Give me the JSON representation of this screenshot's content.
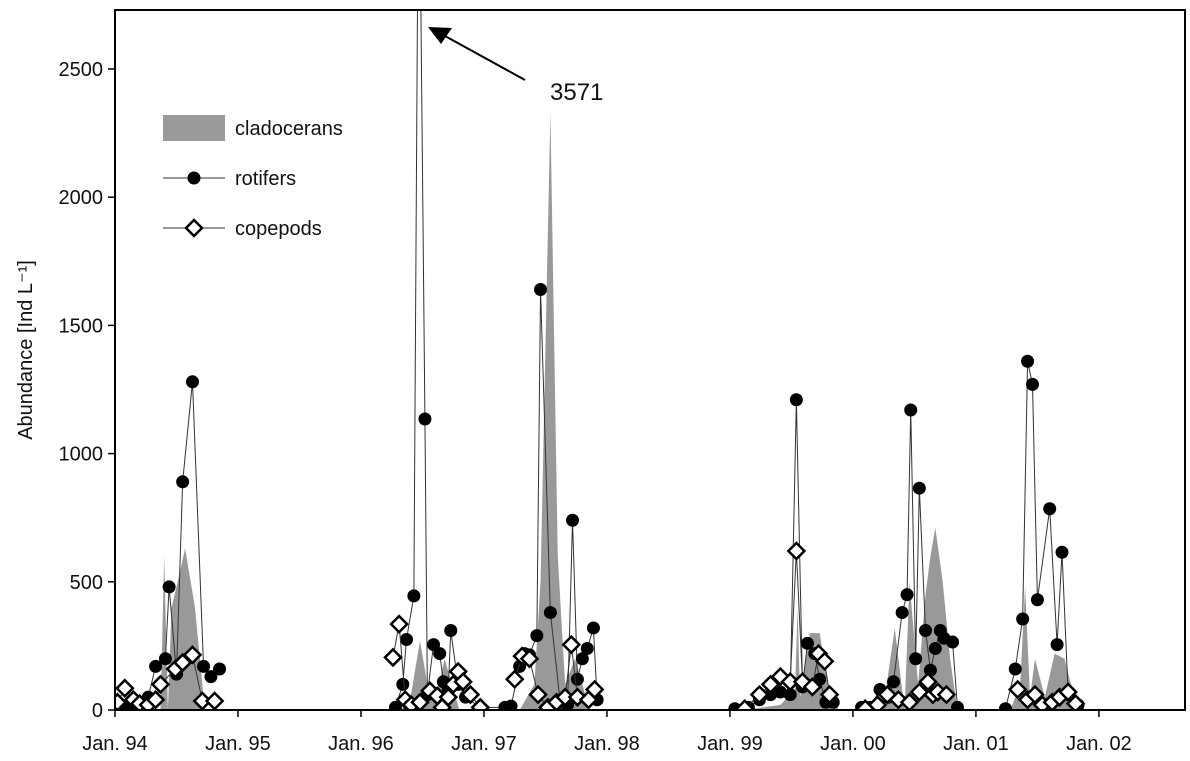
{
  "chart_data": {
    "type": "line",
    "y_label": "Abundance [Ind L⁻¹]",
    "annotation": "3571",
    "xlim": [
      1994,
      2002.7
    ],
    "xticks": [
      {
        "value": 1994,
        "label": "Jan. 94"
      },
      {
        "value": 1995,
        "label": "Jan. 95"
      },
      {
        "value": 1996,
        "label": "Jan. 96"
      },
      {
        "value": 1997,
        "label": "Jan. 97"
      },
      {
        "value": 1998,
        "label": "Jan. 98"
      },
      {
        "value": 1999,
        "label": "Jan. 99"
      },
      {
        "value": 2000,
        "label": "Jan. 00"
      },
      {
        "value": 2001,
        "label": "Jan. 01"
      },
      {
        "value": 2002,
        "label": "Jan. 02"
      }
    ],
    "ylim": [
      0,
      2730
    ],
    "yticks": [
      0,
      500,
      1000,
      1500,
      2000,
      2500
    ],
    "series": [
      {
        "name": "cladocerans",
        "kind": "area",
        "color": "#999999",
        "x": [
          1994.0,
          1994.37,
          1994.4,
          1994.43,
          1994.46,
          1994.51,
          1994.57,
          1994.65,
          1994.73,
          null,
          1996.32,
          1996.4,
          1996.48,
          1996.54,
          1996.61,
          1996.68,
          1996.74,
          1996.8,
          null,
          1997.29,
          1997.41,
          1997.46,
          1997.54,
          1997.6,
          1997.66,
          1997.74,
          1997.86,
          null,
          1999.12,
          1999.41,
          1999.53,
          1999.55,
          1999.57,
          1999.65,
          1999.73,
          1999.81,
          1999.89,
          null,
          2000.14,
          2000.26,
          2000.34,
          2000.42,
          2000.46,
          2000.53,
          2000.59,
          2000.63,
          2000.67,
          2000.73,
          2000.79,
          2000.85,
          null,
          2001.28,
          2001.36,
          2001.4,
          2001.44,
          2001.48,
          2001.56,
          2001.64,
          2001.72,
          2001.8,
          2001.89
        ],
        "values": [
          0,
          0,
          600,
          0,
          400,
          500,
          630,
          400,
          0,
          null,
          0,
          40,
          270,
          100,
          50,
          200,
          100,
          0,
          null,
          0,
          100,
          500,
          2330,
          600,
          100,
          200,
          0,
          null,
          0,
          20,
          80,
          400,
          50,
          300,
          300,
          50,
          0,
          null,
          0,
          50,
          320,
          0,
          500,
          100,
          450,
          600,
          710,
          500,
          200,
          0,
          null,
          0,
          100,
          480,
          50,
          200,
          50,
          220,
          200,
          50,
          0
        ]
      },
      {
        "name": "rotifers",
        "kind": "circle",
        "color": "#000000",
        "x": [
          1994.04,
          1994.12,
          1994.2,
          1994.27,
          1994.33,
          1994.41,
          1994.44,
          1994.5,
          1994.55,
          1994.63,
          1994.72,
          1994.78,
          1994.85,
          null,
          1996.28,
          1996.34,
          1996.37,
          1996.43,
          1996.47,
          1996.52,
          1996.54,
          1996.59,
          1996.64,
          1996.67,
          1996.71,
          1996.73,
          1996.79,
          1996.85,
          1996.97,
          1997.17,
          1997.22,
          1997.29,
          1997.33,
          1997.37,
          1997.43,
          1997.46,
          1997.54,
          1997.62,
          1997.68,
          1997.72,
          1997.76,
          1997.8,
          1997.84,
          1997.89,
          1997.92,
          null,
          1999.04,
          1999.15,
          1999.24,
          1999.33,
          1999.41,
          1999.49,
          1999.54,
          1999.59,
          1999.63,
          1999.69,
          1999.73,
          1999.78,
          1999.84,
          null,
          2000.07,
          2000.14,
          2000.22,
          2000.29,
          2000.33,
          2000.4,
          2000.44,
          2000.47,
          2000.51,
          2000.54,
          2000.59,
          2000.63,
          2000.67,
          2000.71,
          2000.74,
          2000.81,
          2000.85,
          null,
          2001.24,
          2001.32,
          2001.38,
          2001.42,
          2001.46,
          2001.5,
          2001.6,
          2001.66,
          2001.7,
          2001.75,
          2001.83
        ],
        "values": [
          10,
          20,
          30,
          50,
          170,
          200,
          480,
          140,
          890,
          1280,
          170,
          130,
          160,
          null,
          10,
          100,
          275,
          445,
          3571,
          1135,
          60,
          255,
          220,
          110,
          80,
          310,
          100,
          50,
          10,
          10,
          15,
          170,
          220,
          215,
          290,
          1640,
          380,
          30,
          20,
          740,
          120,
          200,
          240,
          320,
          40,
          null,
          5,
          10,
          40,
          60,
          70,
          60,
          1210,
          90,
          260,
          220,
          120,
          30,
          30,
          null,
          10,
          10,
          80,
          50,
          110,
          380,
          450,
          1170,
          200,
          865,
          310,
          155,
          240,
          310,
          280,
          265,
          10,
          null,
          5,
          160,
          355,
          1360,
          1270,
          430,
          785,
          255,
          615,
          60,
          20
        ]
      },
      {
        "name": "copepods",
        "kind": "diamond",
        "color": "#000000",
        "x": [
          1994.02,
          1994.08,
          1994.15,
          1994.2,
          1994.27,
          1994.33,
          1994.37,
          1994.49,
          1994.55,
          1994.63,
          1994.71,
          1994.81,
          null,
          1996.26,
          1996.31,
          1996.36,
          1996.41,
          1996.48,
          1996.56,
          1996.62,
          1996.66,
          1996.71,
          1996.75,
          1996.79,
          1996.83,
          1996.89,
          1996.97,
          null,
          1997.25,
          1997.31,
          1997.37,
          1997.44,
          1997.52,
          1997.59,
          1997.66,
          1997.71,
          1997.76,
          1997.85,
          1997.9,
          null,
          1999.12,
          1999.24,
          1999.33,
          1999.41,
          1999.49,
          1999.54,
          1999.59,
          1999.67,
          1999.72,
          1999.77,
          1999.81,
          null,
          2000.1,
          2000.2,
          2000.28,
          2000.37,
          2000.46,
          2000.54,
          2000.61,
          2000.65,
          2000.69,
          2000.76,
          null,
          2001.34,
          2001.42,
          2001.48,
          2001.54,
          2001.62,
          2001.68,
          2001.75,
          2001.81
        ],
        "values": [
          30,
          85,
          40,
          25,
          20,
          40,
          100,
          160,
          185,
          215,
          35,
          35,
          null,
          205,
          335,
          40,
          20,
          30,
          75,
          55,
          10,
          50,
          100,
          150,
          110,
          60,
          10,
          null,
          120,
          210,
          200,
          60,
          10,
          30,
          50,
          255,
          50,
          40,
          80,
          null,
          5,
          60,
          100,
          130,
          110,
          620,
          110,
          90,
          220,
          190,
          60,
          null,
          5,
          20,
          60,
          40,
          30,
          70,
          110,
          60,
          70,
          60,
          null,
          80,
          40,
          60,
          20,
          30,
          50,
          70,
          25
        ]
      }
    ]
  }
}
